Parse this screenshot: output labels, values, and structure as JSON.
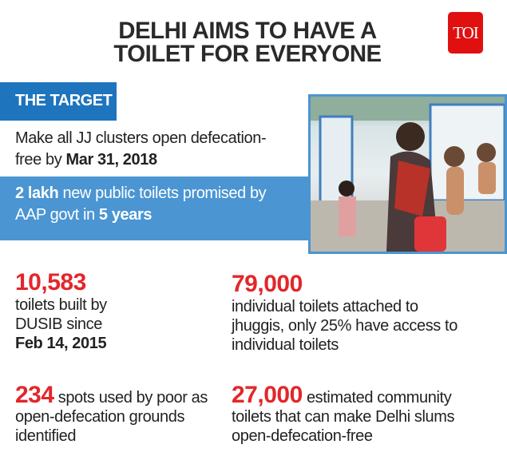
{
  "title": {
    "line1": "DELHI AIMS TO HAVE A",
    "line2": "TOILET FOR EVERYONE"
  },
  "logo": "TOI",
  "target": {
    "heading": "THE TARGET",
    "item1": {
      "text": "Make all JJ clusters open defecation-free by ",
      "bold": "Mar 31, 2018"
    },
    "item2": {
      "bold1": "2 lakh",
      "text1": " new public toilets promised by AAP govt in ",
      "bold2": "5 years"
    }
  },
  "photo": {
    "description_icon": "photo-woman-washing-child"
  },
  "stats": [
    {
      "value": "10,583",
      "text": "toilets built by DUSIB since",
      "bold": "Feb 14, 2015"
    },
    {
      "value": "79,000",
      "text": "individual toilets attached to jhuggis, only 25% have access to individual toilets"
    },
    {
      "value": "234",
      "text": "spots used by poor as open-defecation grounds identified"
    },
    {
      "value": "27,000",
      "text": "estimated community toilets that can make Delhi slums open-defecation-free"
    }
  ],
  "colors": {
    "red": "#e3262b",
    "blue_dark": "#1e74bd",
    "blue_light": "#4a95d2"
  }
}
